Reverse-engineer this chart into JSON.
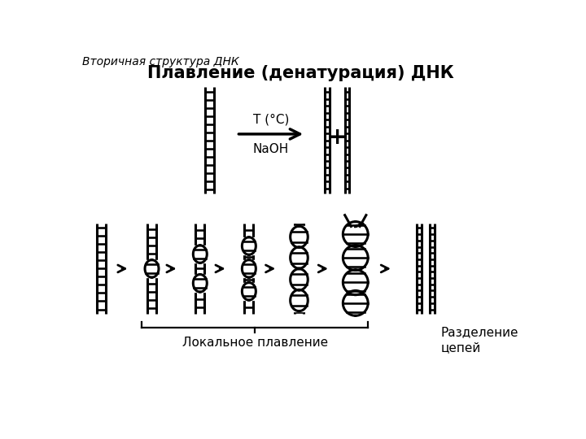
{
  "title": "Плавление (денатурация) ДНК",
  "subtitle": "Вторичная структура ДНК",
  "arrow_label_top": "T (°C)",
  "arrow_label_bottom": "NaOH",
  "plus_sign": "+",
  "local_melting_label": "Локальное плавление",
  "separation_label": "Разделение\nцепей",
  "bg_color": "#ffffff",
  "line_color": "#000000",
  "lw": 2.2
}
